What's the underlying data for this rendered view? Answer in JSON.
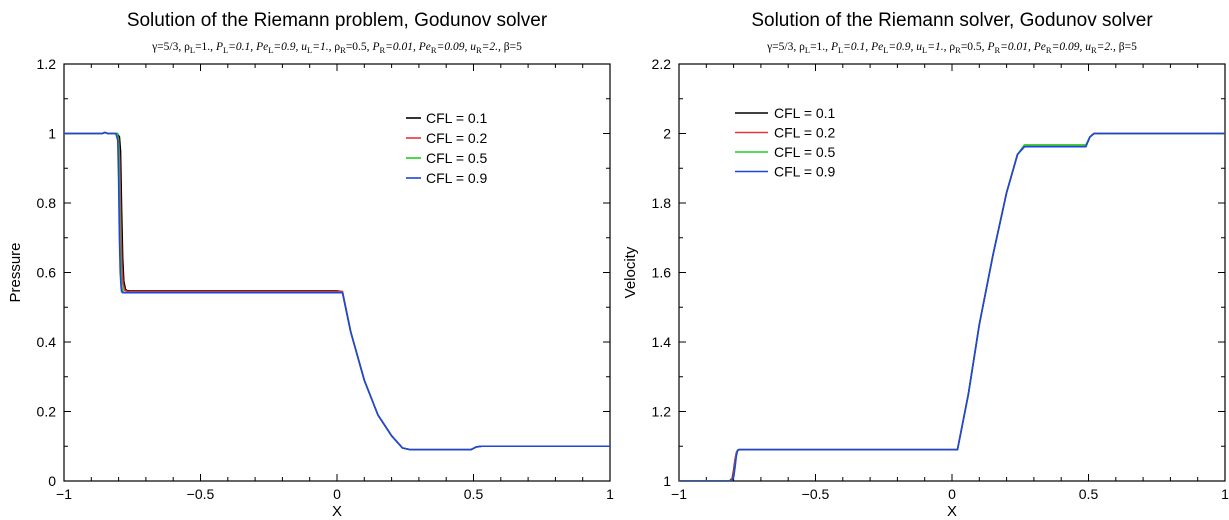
{
  "chart_data": [
    {
      "type": "line",
      "title": "Solution of the Riemann problem, Godunov solver",
      "subtitle": [
        {
          "t": "γ=5/3, ρ"
        },
        {
          "t": "L",
          "sub": true
        },
        {
          "t": "=1., "
        },
        {
          "t": "P",
          "it": true
        },
        {
          "t": "L",
          "sub": true
        },
        {
          "t": "=0.1, ",
          "it": true
        },
        {
          "t": "Pe",
          "it": true
        },
        {
          "t": "L",
          "sub": true
        },
        {
          "t": "=0.9, ",
          "it": true
        },
        {
          "t": "u",
          "it": true
        },
        {
          "t": "L",
          "sub": true
        },
        {
          "t": "=1., ",
          "it": true
        },
        {
          "t": "ρ"
        },
        {
          "t": "R",
          "sub": true
        },
        {
          "t": "=0.5, "
        },
        {
          "t": "P",
          "it": true
        },
        {
          "t": "R",
          "sub": true
        },
        {
          "t": "=0.01, ",
          "it": true
        },
        {
          "t": "Pe",
          "it": true
        },
        {
          "t": "R",
          "sub": true
        },
        {
          "t": "=0.09, ",
          "it": true
        },
        {
          "t": "u",
          "it": true
        },
        {
          "t": "R",
          "sub": true
        },
        {
          "t": "=2., ",
          "it": true
        },
        {
          "t": "β=5"
        }
      ],
      "xlabel": "X",
      "ylabel": "Pressure",
      "xlim": [
        -1,
        1
      ],
      "ylim": [
        0,
        1.2
      ],
      "xticks": [
        -1,
        -0.5,
        0,
        0.5,
        1
      ],
      "xtick_labels": [
        "−1",
        "−0.5",
        "0",
        "0.5",
        "1"
      ],
      "yticks": [
        0,
        0.2,
        0.4,
        0.6,
        0.8,
        1,
        1.2
      ],
      "ytick_labels": [
        "0",
        "0.2",
        "0.4",
        "0.6",
        "0.8",
        "1",
        "1.2"
      ],
      "legend_position": "top-right",
      "series": [
        {
          "name": "CFL = 0.1",
          "color": "#000000",
          "x": [
            -1,
            -0.86,
            -0.85,
            -0.84,
            -0.805,
            -0.797,
            -0.793,
            -0.789,
            -0.785,
            -0.781,
            -0.775,
            -0.77,
            -0.76,
            0.0,
            0.02,
            0.05,
            0.1,
            0.15,
            0.2,
            0.24,
            0.27,
            0.49,
            0.51,
            0.53,
            1
          ],
          "y": [
            1.0,
            1.0,
            1.003,
            1.0,
            1.0,
            0.99,
            0.95,
            0.78,
            0.64,
            0.575,
            0.552,
            0.548,
            0.547,
            0.547,
            0.545,
            0.43,
            0.29,
            0.19,
            0.13,
            0.095,
            0.09,
            0.09,
            0.098,
            0.1,
            0.1
          ]
        },
        {
          "name": "CFL = 0.2",
          "color": "#e8333a",
          "x": [
            -1,
            -0.86,
            -0.85,
            -0.84,
            -0.81,
            -0.8,
            -0.796,
            -0.792,
            -0.788,
            -0.784,
            -0.778,
            -0.77,
            -0.76,
            0.0,
            0.02,
            0.05,
            0.1,
            0.15,
            0.2,
            0.24,
            0.27,
            0.49,
            0.51,
            0.53,
            1
          ],
          "y": [
            1.0,
            1.0,
            1.003,
            1.0,
            1.0,
            0.985,
            0.92,
            0.75,
            0.62,
            0.57,
            0.549,
            0.546,
            0.545,
            0.545,
            0.545,
            0.43,
            0.29,
            0.19,
            0.13,
            0.095,
            0.09,
            0.09,
            0.098,
            0.1,
            0.1
          ]
        },
        {
          "name": "CFL = 0.5",
          "color": "#22cc22",
          "x": [
            -1,
            -0.86,
            -0.85,
            -0.84,
            -0.804,
            -0.8,
            -0.797,
            -0.794,
            -0.791,
            -0.788,
            -0.784,
            -0.78,
            -0.77,
            0.0,
            0.02,
            0.05,
            0.1,
            0.15,
            0.2,
            0.24,
            0.27,
            0.49,
            0.51,
            0.53,
            1
          ],
          "y": [
            1.0,
            1.0,
            1.003,
            1.0,
            1.0,
            0.97,
            0.85,
            0.68,
            0.59,
            0.56,
            0.545,
            0.542,
            0.542,
            0.542,
            0.542,
            0.43,
            0.29,
            0.19,
            0.13,
            0.095,
            0.09,
            0.09,
            0.098,
            0.1,
            0.1
          ]
        },
        {
          "name": "CFL = 0.9",
          "color": "#2244dd",
          "x": [
            -1,
            -0.86,
            -0.85,
            -0.84,
            -0.81,
            -0.803,
            -0.8,
            -0.797,
            -0.794,
            -0.791,
            -0.789,
            -0.785,
            -0.77,
            0.0,
            0.02,
            0.05,
            0.1,
            0.15,
            0.2,
            0.24,
            0.27,
            0.49,
            0.51,
            0.53,
            1
          ],
          "y": [
            1.0,
            1.0,
            1.003,
            1.0,
            1.0,
            0.98,
            0.87,
            0.7,
            0.6,
            0.56,
            0.545,
            0.542,
            0.542,
            0.542,
            0.542,
            0.43,
            0.29,
            0.19,
            0.13,
            0.095,
            0.09,
            0.09,
            0.098,
            0.1,
            0.1
          ]
        }
      ]
    },
    {
      "type": "line",
      "title": "Solution of the Riemann solver, Godunov solver",
      "subtitle": [
        {
          "t": "γ=5/3, ρ"
        },
        {
          "t": "L",
          "sub": true
        },
        {
          "t": "=1., "
        },
        {
          "t": "P",
          "it": true
        },
        {
          "t": "L",
          "sub": true
        },
        {
          "t": "=0.1, ",
          "it": true
        },
        {
          "t": "Pe",
          "it": true
        },
        {
          "t": "L",
          "sub": true
        },
        {
          "t": "=0.9, ",
          "it": true
        },
        {
          "t": "u",
          "it": true
        },
        {
          "t": "L",
          "sub": true
        },
        {
          "t": "=1., ",
          "it": true
        },
        {
          "t": "ρ"
        },
        {
          "t": "R",
          "sub": true
        },
        {
          "t": "=0.5, "
        },
        {
          "t": "P",
          "it": true
        },
        {
          "t": "R",
          "sub": true
        },
        {
          "t": "=0.01, ",
          "it": true
        },
        {
          "t": "Pe",
          "it": true
        },
        {
          "t": "R",
          "sub": true
        },
        {
          "t": "=0.09, ",
          "it": true
        },
        {
          "t": "u",
          "it": true
        },
        {
          "t": "R",
          "sub": true
        },
        {
          "t": "=2., ",
          "it": true
        },
        {
          "t": "β=5"
        }
      ],
      "xlabel": "X",
      "ylabel": "Velocity",
      "xlim": [
        -1,
        1
      ],
      "ylim": [
        1,
        2.2
      ],
      "xticks": [
        -1,
        -0.5,
        0,
        0.5,
        1
      ],
      "xtick_labels": [
        "−1",
        "−0.5",
        "0",
        "0.5",
        "1"
      ],
      "yticks": [
        1,
        1.2,
        1.4,
        1.6,
        1.8,
        2,
        2.2
      ],
      "ytick_labels": [
        "1",
        "1.2",
        "1.4",
        "1.6",
        "1.8",
        "2",
        "2.2"
      ],
      "legend_position": "top-left",
      "series": [
        {
          "name": "CFL = 0.1",
          "color": "#000000",
          "x": [
            -1,
            -0.815,
            -0.805,
            -0.8,
            -0.795,
            -0.79,
            -0.785,
            -0.78,
            -0.77,
            0.02,
            0.06,
            0.1,
            0.15,
            0.2,
            0.24,
            0.265,
            0.28,
            0.49,
            0.505,
            0.52,
            1
          ],
          "y": [
            1.0,
            1.0,
            1.008,
            1.03,
            1.06,
            1.08,
            1.088,
            1.09,
            1.09,
            1.09,
            1.25,
            1.45,
            1.65,
            1.83,
            1.94,
            1.962,
            1.962,
            1.962,
            1.99,
            2.0,
            2.0
          ]
        },
        {
          "name": "CFL = 0.2",
          "color": "#e8333a",
          "x": [
            -1,
            -0.812,
            -0.803,
            -0.798,
            -0.794,
            -0.79,
            -0.785,
            -0.78,
            -0.77,
            0.02,
            0.06,
            0.1,
            0.15,
            0.2,
            0.24,
            0.265,
            0.28,
            0.49,
            0.505,
            0.52,
            1
          ],
          "y": [
            1.0,
            1.0,
            1.01,
            1.035,
            1.065,
            1.082,
            1.089,
            1.09,
            1.09,
            1.09,
            1.25,
            1.45,
            1.65,
            1.83,
            1.94,
            1.962,
            1.962,
            1.962,
            1.99,
            2.0,
            2.0
          ]
        },
        {
          "name": "CFL = 0.5",
          "color": "#22cc22",
          "x": [
            -1,
            -0.808,
            -0.8,
            -0.795,
            -0.791,
            -0.787,
            -0.783,
            -0.778,
            -0.77,
            0.02,
            0.06,
            0.1,
            0.15,
            0.2,
            0.24,
            0.265,
            0.28,
            0.49,
            0.505,
            0.52,
            1
          ],
          "y": [
            1.0,
            1.0,
            1.012,
            1.04,
            1.07,
            1.085,
            1.09,
            1.09,
            1.09,
            1.09,
            1.25,
            1.45,
            1.65,
            1.83,
            1.94,
            1.967,
            1.967,
            1.967,
            1.99,
            2.0,
            2.0
          ]
        },
        {
          "name": "CFL = 0.9",
          "color": "#2244dd",
          "x": [
            -1,
            -0.806,
            -0.799,
            -0.794,
            -0.79,
            -0.786,
            -0.782,
            -0.778,
            -0.77,
            0.02,
            0.06,
            0.1,
            0.15,
            0.2,
            0.24,
            0.265,
            0.28,
            0.49,
            0.505,
            0.52,
            1
          ],
          "y": [
            1.0,
            1.0,
            1.015,
            1.045,
            1.072,
            1.086,
            1.09,
            1.09,
            1.09,
            1.09,
            1.25,
            1.45,
            1.65,
            1.83,
            1.94,
            1.962,
            1.962,
            1.962,
            1.99,
            2.0,
            2.0
          ]
        }
      ]
    }
  ]
}
